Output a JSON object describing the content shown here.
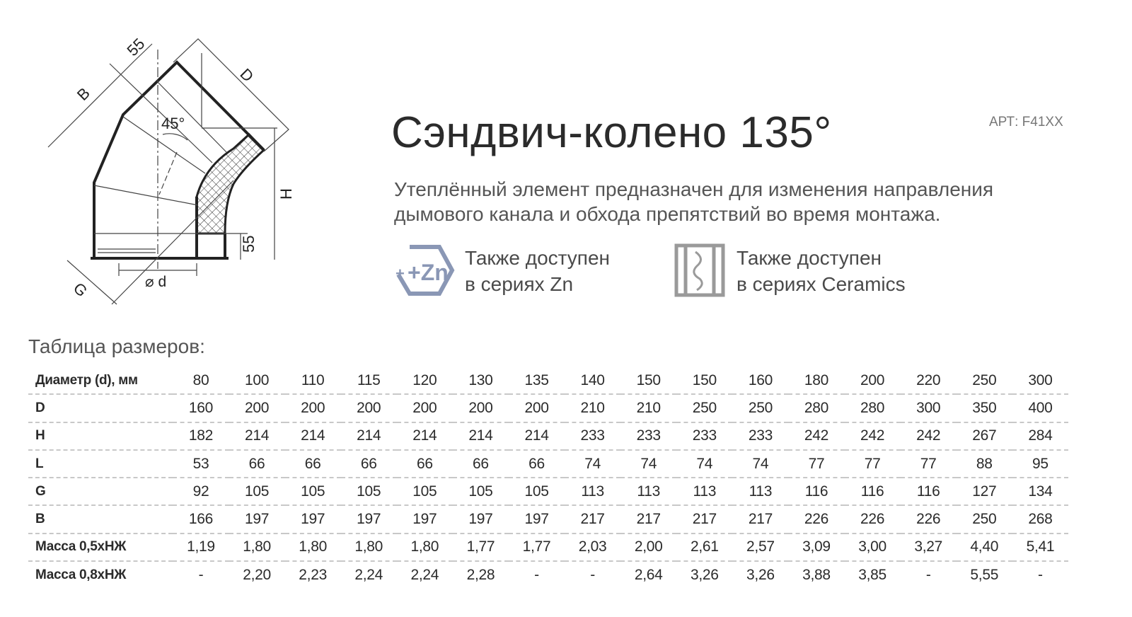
{
  "header": {
    "title": "Сэндвич-колено 135°",
    "article": "АРТ: F41XX",
    "description_line1": "Утеплённый элемент предназначен для изменения направления",
    "description_line2": "дымового канала и обхода препятствий во время монтажа."
  },
  "availability": [
    {
      "icon": "zn-hexagon-icon",
      "icon_text": "+Zn",
      "line1": "Также доступен",
      "line2": "в сериях Zn",
      "color": "#8a97b5"
    },
    {
      "icon": "ceramics-icon",
      "line1": "Также доступен",
      "line2": "в сериях Ceramics",
      "color": "#9a9a9a"
    }
  ],
  "diagram": {
    "labels": {
      "b": "B",
      "top55": "55",
      "d_upper": "D",
      "angle": "45°",
      "h": "H",
      "bottom55": "55",
      "diameter": "⌀ d",
      "g": "G"
    }
  },
  "table": {
    "caption": "Таблица размеров:",
    "rows": [
      {
        "label": "Диаметр (d), мм",
        "values": [
          "80",
          "100",
          "110",
          "115",
          "120",
          "130",
          "135",
          "140",
          "150",
          "150",
          "160",
          "180",
          "200",
          "220",
          "250",
          "300"
        ]
      },
      {
        "label": "D",
        "values": [
          "160",
          "200",
          "200",
          "200",
          "200",
          "200",
          "200",
          "210",
          "210",
          "250",
          "250",
          "280",
          "280",
          "300",
          "350",
          "400"
        ]
      },
      {
        "label": "H",
        "values": [
          "182",
          "214",
          "214",
          "214",
          "214",
          "214",
          "214",
          "233",
          "233",
          "233",
          "233",
          "242",
          "242",
          "242",
          "267",
          "284"
        ]
      },
      {
        "label": "L",
        "values": [
          "53",
          "66",
          "66",
          "66",
          "66",
          "66",
          "66",
          "74",
          "74",
          "74",
          "74",
          "77",
          "77",
          "77",
          "88",
          "95"
        ]
      },
      {
        "label": "G",
        "values": [
          "92",
          "105",
          "105",
          "105",
          "105",
          "105",
          "105",
          "113",
          "113",
          "113",
          "113",
          "116",
          "116",
          "116",
          "127",
          "134"
        ]
      },
      {
        "label": "B",
        "values": [
          "166",
          "197",
          "197",
          "197",
          "197",
          "197",
          "197",
          "217",
          "217",
          "217",
          "217",
          "226",
          "226",
          "226",
          "250",
          "268"
        ]
      },
      {
        "label": "Масса 0,5хНЖ",
        "values": [
          "1,19",
          "1,80",
          "1,80",
          "1,80",
          "1,80",
          "1,77",
          "1,77",
          "2,03",
          "2,00",
          "2,61",
          "2,57",
          "3,09",
          "3,00",
          "3,27",
          "4,40",
          "5,41"
        ]
      },
      {
        "label": "Масса 0,8хНЖ",
        "values": [
          "-",
          "2,20",
          "2,23",
          "2,24",
          "2,24",
          "2,28",
          "-",
          "-",
          "2,64",
          "3,26",
          "3,26",
          "3,88",
          "3,85",
          "-",
          "5,55",
          "-"
        ]
      }
    ]
  }
}
